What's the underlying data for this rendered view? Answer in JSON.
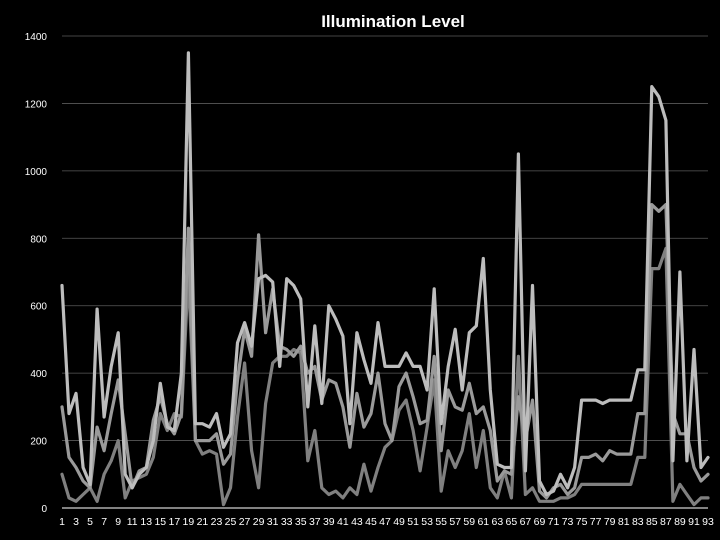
{
  "chart_data": {
    "type": "line",
    "title": "Illumination Level",
    "xlabel": "",
    "ylabel": "",
    "ylim": [
      0,
      1400
    ],
    "yticks": [
      0,
      200,
      400,
      600,
      800,
      1000,
      1200,
      1400
    ],
    "x": [
      1,
      2,
      3,
      4,
      5,
      6,
      7,
      8,
      9,
      10,
      11,
      12,
      13,
      14,
      15,
      16,
      17,
      18,
      19,
      20,
      21,
      22,
      23,
      24,
      25,
      26,
      27,
      28,
      29,
      30,
      31,
      32,
      33,
      34,
      35,
      36,
      37,
      38,
      39,
      40,
      41,
      42,
      43,
      44,
      45,
      46,
      47,
      48,
      49,
      50,
      51,
      52,
      53,
      54,
      55,
      56,
      57,
      58,
      59,
      60,
      61,
      62,
      63,
      64,
      65,
      66,
      67,
      68,
      69,
      70,
      71,
      72,
      73,
      74,
      75,
      76,
      77,
      78,
      79,
      80,
      81,
      82,
      83,
      84,
      85,
      86,
      87,
      88,
      89,
      90,
      91,
      92,
      93
    ],
    "xtick_labels": [
      "1",
      "3",
      "5",
      "7",
      "9",
      "11",
      "13",
      "15",
      "17",
      "19",
      "21",
      "23",
      "25",
      "27",
      "29",
      "31",
      "33",
      "35",
      "37",
      "39",
      "41",
      "43",
      "45",
      "47",
      "49",
      "51",
      "53",
      "55",
      "57",
      "59",
      "61",
      "63",
      "65",
      "67",
      "69",
      "71",
      "73",
      "75",
      "77",
      "79",
      "81",
      "83",
      "85",
      "87",
      "89",
      "91",
      "93"
    ],
    "grid": true,
    "legend": "none",
    "colors": {
      "background": "#000000",
      "grid": "#5a5a5a",
      "text": "#ffffff"
    },
    "series": [
      {
        "color": "#bdbdbd",
        "values": [
          660,
          280,
          340,
          120,
          70,
          590,
          270,
          420,
          520,
          100,
          60,
          100,
          120,
          200,
          370,
          240,
          230,
          400,
          1350,
          250,
          250,
          240,
          280,
          180,
          220,
          490,
          550,
          480,
          680,
          690,
          670,
          420,
          680,
          660,
          620,
          300,
          540,
          310,
          600,
          560,
          510,
          250,
          520,
          440,
          370,
          550,
          420,
          420,
          420,
          460,
          420,
          420,
          350,
          650,
          250,
          420,
          530,
          350,
          520,
          540,
          740,
          350,
          130,
          120,
          120,
          1050,
          110,
          660,
          80,
          40,
          50,
          100,
          60,
          120,
          320,
          320,
          320,
          310,
          320,
          320,
          320,
          320,
          410,
          410,
          1250,
          1220,
          1150,
          140,
          700,
          140,
          470,
          120,
          150
        ]
      },
      {
        "color": "#9a9a9a",
        "values": [
          300,
          150,
          120,
          80,
          60,
          240,
          170,
          280,
          380,
          220,
          60,
          110,
          120,
          260,
          330,
          250,
          220,
          280,
          830,
          200,
          200,
          200,
          220,
          130,
          160,
          380,
          530,
          450,
          810,
          520,
          650,
          480,
          470,
          450,
          480,
          400,
          420,
          320,
          380,
          370,
          300,
          180,
          340,
          240,
          280,
          400,
          250,
          200,
          360,
          400,
          330,
          250,
          260,
          450,
          170,
          350,
          300,
          290,
          370,
          280,
          300,
          230,
          80,
          110,
          100,
          330,
          200,
          320,
          50,
          30,
          60,
          70,
          40,
          60,
          150,
          150,
          160,
          140,
          170,
          160,
          160,
          160,
          280,
          280,
          900,
          880,
          900,
          280,
          220,
          220,
          120,
          80,
          100
        ]
      },
      {
        "color": "#808080",
        "values": [
          100,
          30,
          20,
          40,
          60,
          20,
          100,
          140,
          200,
          30,
          80,
          90,
          100,
          150,
          280,
          230,
          280,
          270,
          700,
          200,
          160,
          170,
          160,
          10,
          60,
          270,
          430,
          170,
          60,
          310,
          430,
          450,
          450,
          470,
          460,
          140,
          230,
          60,
          40,
          50,
          30,
          60,
          40,
          130,
          50,
          120,
          180,
          200,
          290,
          320,
          230,
          110,
          240,
          380,
          50,
          170,
          120,
          170,
          280,
          120,
          230,
          60,
          30,
          110,
          30,
          450,
          40,
          60,
          20,
          20,
          20,
          30,
          30,
          40,
          70,
          70,
          70,
          70,
          70,
          70,
          70,
          70,
          150,
          150,
          710,
          710,
          770,
          20,
          70,
          40,
          10,
          30,
          30
        ]
      }
    ]
  }
}
